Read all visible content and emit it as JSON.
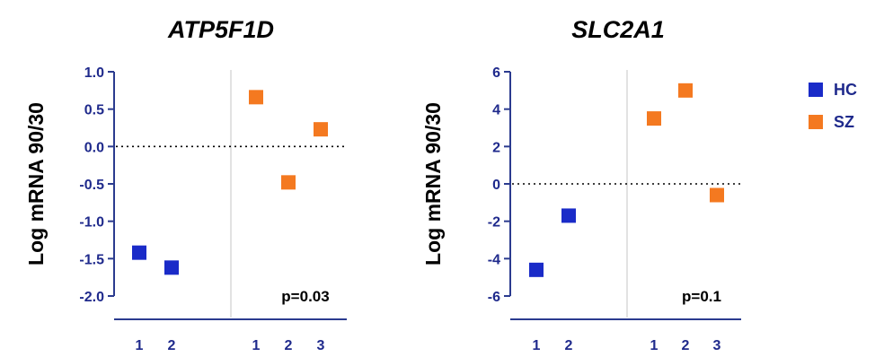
{
  "colors": {
    "HC": "#1a2bc8",
    "SZ": "#f47920",
    "axis": "#2b3b8f",
    "tick_text": "#1f2a8c"
  },
  "legend": {
    "items": [
      {
        "label": "HC",
        "color": "#1a2bc8"
      },
      {
        "label": "SZ",
        "color": "#f47920"
      }
    ]
  },
  "chart_data": [
    {
      "type": "scatter",
      "title": "ATP5F1D",
      "ylabel": "Log mRNA 90/30",
      "ylim": [
        -2.0,
        1.0
      ],
      "yticks": [
        "1.0",
        "0.5",
        "0.0",
        "-0.5",
        "-1.0",
        "-1.5",
        "-2.0"
      ],
      "ytick_values": [
        1.0,
        0.5,
        0.0,
        -0.5,
        -1.0,
        -1.5,
        -2.0
      ],
      "annotation": "p=0.03",
      "series": [
        {
          "name": "HC",
          "x_labels": [
            "1",
            "2"
          ],
          "values": [
            -1.42,
            -1.62
          ]
        },
        {
          "name": "SZ",
          "x_labels": [
            "1",
            "2",
            "3"
          ],
          "values": [
            0.66,
            -0.48,
            0.23
          ]
        }
      ]
    },
    {
      "type": "scatter",
      "title": "SLC2A1",
      "ylabel": "Log mRNA 90/30",
      "ylim": [
        -6,
        6
      ],
      "yticks": [
        "6",
        "4",
        "2",
        "0",
        "-2",
        "-4",
        "-6"
      ],
      "ytick_values": [
        6,
        4,
        2,
        0,
        -2,
        -4,
        -6
      ],
      "annotation": "p=0.1",
      "series": [
        {
          "name": "HC",
          "x_labels": [
            "1",
            "2"
          ],
          "values": [
            -4.6,
            -1.7
          ]
        },
        {
          "name": "SZ",
          "x_labels": [
            "1",
            "2",
            "3"
          ],
          "values": [
            3.5,
            5.0,
            -0.6
          ]
        }
      ]
    }
  ]
}
